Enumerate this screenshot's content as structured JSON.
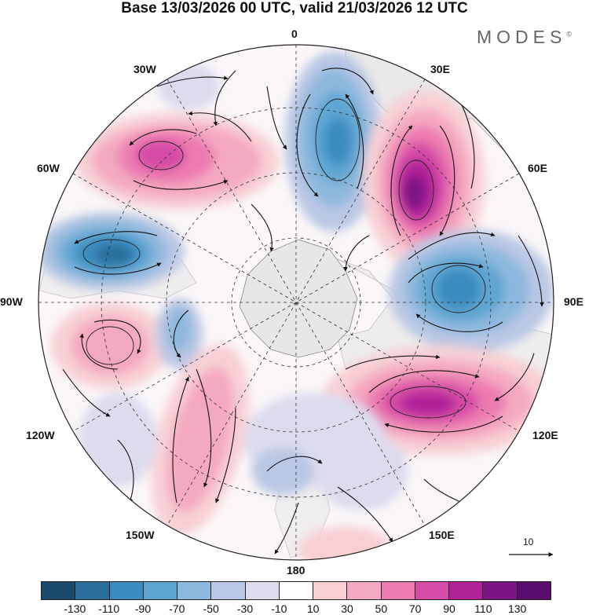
{
  "header": {
    "title": "Base 13/03/2026 00 UTC, valid 21/03/2026 12 UTC",
    "brand": "MODES",
    "brand_mark": "©"
  },
  "longitude_labels": {
    "top": "0",
    "top_right": "30E",
    "right_upper": "60E",
    "right": "90E",
    "right_lower": "120E",
    "bottom_right": "150E",
    "bottom": "180",
    "bottom_left": "150W",
    "left_lower": "120W",
    "left": "90W",
    "left_upper": "60W",
    "top_left": "30W"
  },
  "reference_vector": {
    "label": "10"
  },
  "colorbar": {
    "levels": [
      "-130",
      "-110",
      "-90",
      "-70",
      "-50",
      "-30",
      "-10",
      "10",
      "30",
      "50",
      "70",
      "90",
      "110",
      "130"
    ],
    "colors": [
      "#1a4a6b",
      "#2b6e9b",
      "#3a8cbf",
      "#5fa6d2",
      "#8db8dd",
      "#b9c7e4",
      "#dcdcee",
      "#ffffff",
      "#f8d0d4",
      "#f4a9c0",
      "#ec7bb0",
      "#d64ca6",
      "#b02398",
      "#7e1585",
      "#5a0d6e"
    ]
  },
  "anomaly_centers": [
    {
      "name": "north-atlantic-negative",
      "value": -70
    },
    {
      "name": "europe-positive",
      "value": 110
    },
    {
      "name": "siberia-negative",
      "value": -70
    },
    {
      "name": "far-east-positive",
      "value": 90
    },
    {
      "name": "greenland-positive",
      "value": 90
    },
    {
      "name": "canada-negative",
      "value": -110
    },
    {
      "name": "eastern-pacific-positive",
      "value": 50
    },
    {
      "name": "north-pacific-positive",
      "value": 50
    }
  ]
}
